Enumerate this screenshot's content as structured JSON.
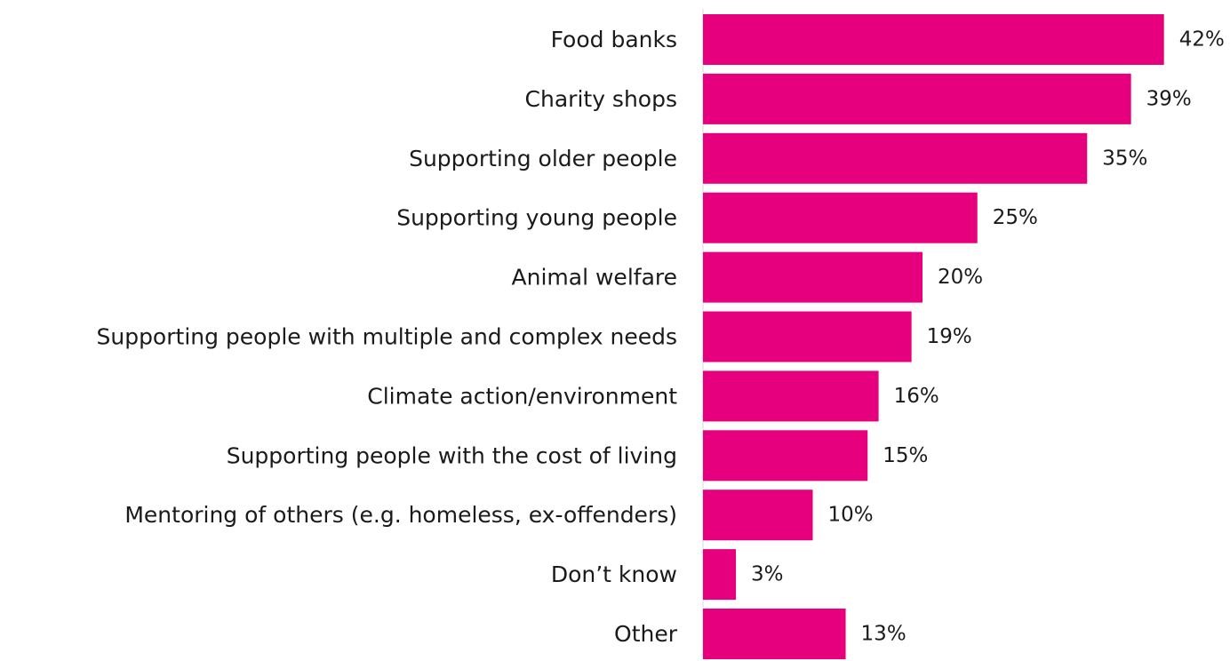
{
  "chart_data": {
    "type": "bar",
    "orientation": "horizontal",
    "categories": [
      "Food banks",
      "Charity shops",
      "Supporting older people",
      "Supporting young people",
      "Animal welfare",
      "Supporting people with multiple and complex needs",
      "Climate action/environment",
      "Supporting people with the cost of living",
      "Mentoring of others (e.g. homeless, ex-offenders)",
      "Don’t know",
      "Other"
    ],
    "values": [
      42,
      39,
      35,
      25,
      20,
      19,
      16,
      15,
      10,
      3,
      13
    ],
    "value_labels": [
      "42%",
      "39%",
      "35%",
      "25%",
      "20%",
      "19%",
      "16%",
      "15%",
      "10%",
      "3%",
      "13%"
    ],
    "unit": "%",
    "bar_color": "#E6007E",
    "title": "",
    "xlabel": "",
    "ylabel": "",
    "grid": false,
    "legend": "none"
  }
}
